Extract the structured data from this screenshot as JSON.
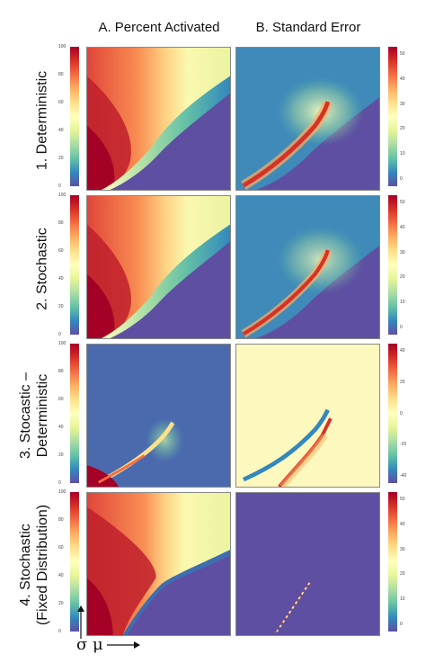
{
  "columns": [
    "A. Percent Activated",
    "B. Standard Error"
  ],
  "rows": [
    {
      "label_lines": [
        "1. Deterministic"
      ]
    },
    {
      "label_lines": [
        "2. Stochastic"
      ]
    },
    {
      "label_lines": [
        "3. Stocastic –",
        "Deterministic"
      ]
    },
    {
      "label_lines": [
        "4. Stochastic",
        "(Fixed Distribution)"
      ]
    }
  ],
  "axes": {
    "y_symbol": "σ",
    "x_symbol": "μ"
  },
  "colorbar_ticks": {
    "percent": [
      "100",
      "80",
      "60",
      "40",
      "20",
      "0"
    ],
    "stderr": [
      "50",
      "40",
      "30",
      "20",
      "10",
      "0"
    ],
    "stderr_diff": [
      "40",
      "20",
      "0",
      "-20",
      "-40"
    ]
  },
  "colormap": "Spectral_r",
  "chart_data": [
    {
      "type": "heatmap",
      "panel": "1A",
      "title": "A. Percent Activated",
      "row": "1. Deterministic",
      "colorbar_range": [
        0,
        100
      ]
    },
    {
      "type": "heatmap",
      "panel": "1B",
      "title": "B. Standard Error",
      "row": "1. Deterministic",
      "colorbar_range": [
        0,
        50
      ]
    },
    {
      "type": "heatmap",
      "panel": "2A",
      "title": "A. Percent Activated",
      "row": "2. Stochastic",
      "colorbar_range": [
        0,
        100
      ]
    },
    {
      "type": "heatmap",
      "panel": "2B",
      "title": "B. Standard Error",
      "row": "2. Stochastic",
      "colorbar_range": [
        0,
        50
      ]
    },
    {
      "type": "heatmap",
      "panel": "3A",
      "title": "A. Percent Activated",
      "row": "3. Stocastic – Deterministic",
      "colorbar_range": [
        0,
        100
      ]
    },
    {
      "type": "heatmap",
      "panel": "3B",
      "title": "B. Standard Error",
      "row": "3. Stocastic – Deterministic",
      "colorbar_range": [
        -40,
        40
      ]
    },
    {
      "type": "heatmap",
      "panel": "4A",
      "title": "A. Percent Activated",
      "row": "4. Stochastic (Fixed Distribution)",
      "colorbar_range": [
        0,
        100
      ]
    },
    {
      "type": "heatmap",
      "panel": "4B",
      "title": "B. Standard Error",
      "row": "4. Stochastic (Fixed Distribution)",
      "colorbar_range": [
        0,
        50
      ]
    }
  ]
}
